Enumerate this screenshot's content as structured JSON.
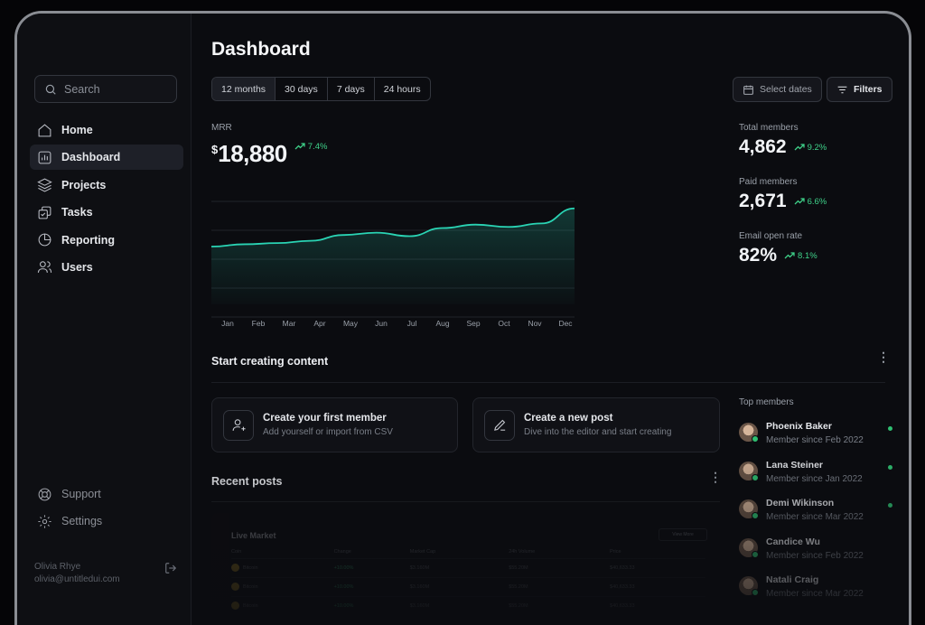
{
  "search": {
    "placeholder": "Search"
  },
  "nav": [
    {
      "label": "Home",
      "icon": "home-icon"
    },
    {
      "label": "Dashboard",
      "icon": "bar-chart-icon",
      "active": true
    },
    {
      "label": "Projects",
      "icon": "layers-icon"
    },
    {
      "label": "Tasks",
      "icon": "check-squares-icon"
    },
    {
      "label": "Reporting",
      "icon": "pie-chart-icon"
    },
    {
      "label": "Users",
      "icon": "users-icon"
    }
  ],
  "bottom_nav": [
    {
      "label": "Support",
      "icon": "life-buoy-icon"
    },
    {
      "label": "Settings",
      "icon": "gear-icon"
    }
  ],
  "user": {
    "name": "Olivia Rhye",
    "email": "olivia@untitledui.com"
  },
  "page": {
    "title": "Dashboard"
  },
  "ranges": [
    "12 months",
    "30 days",
    "7 days",
    "24 hours"
  ],
  "actions": {
    "select_dates": "Select dates",
    "filters": "Filters"
  },
  "mrr": {
    "label": "MRR",
    "currency": "$",
    "value": "18,880",
    "delta": "7.4%"
  },
  "stats": [
    {
      "label": "Total members",
      "value": "4,862",
      "delta": "9.2%"
    },
    {
      "label": "Paid members",
      "value": "2,671",
      "delta": "6.6%"
    },
    {
      "label": "Email open rate",
      "value": "82%",
      "delta": "8.1%"
    }
  ],
  "chart_data": {
    "type": "area",
    "categories": [
      "Jan",
      "Feb",
      "Mar",
      "Apr",
      "May",
      "Jun",
      "Jul",
      "Aug",
      "Sep",
      "Oct",
      "Nov",
      "Dec"
    ],
    "values": [
      5.0,
      5.2,
      5.3,
      5.5,
      6.0,
      6.2,
      5.9,
      6.6,
      6.9,
      6.7,
      7.0,
      8.3
    ],
    "ylim": [
      0,
      10
    ],
    "grid": true,
    "accent": "#2ad4b4"
  },
  "content": {
    "title": "Start creating content",
    "cards": [
      {
        "title": "Create your first member",
        "subtitle": "Add yourself or import from CSV",
        "icon": "user-plus-icon"
      },
      {
        "title": "Create a new post",
        "subtitle": "Dive into the editor and start creating",
        "icon": "pen-icon"
      }
    ]
  },
  "recent": {
    "title": "Recent posts",
    "market": {
      "title": "Live Market",
      "button": "View More",
      "columns": [
        "Coin",
        "Change",
        "Market Cap",
        "24h Volume",
        "Price"
      ],
      "rows": [
        [
          "Bitcoin",
          "+10.00%",
          "$3.160M",
          "$55.20M",
          "$40,633.33"
        ],
        [
          "Bitcoin",
          "+10.00%",
          "$3.160M",
          "$55.20M",
          "$40,633.33"
        ],
        [
          "Bitcoin",
          "+10.00%",
          "$3.160M",
          "$55.20M",
          "$40,633.33"
        ]
      ]
    }
  },
  "top_members": {
    "title": "Top members",
    "members": [
      {
        "name": "Phoenix Baker",
        "since": "Member since Feb 2022"
      },
      {
        "name": "Lana Steiner",
        "since": "Member since Jan 2022"
      },
      {
        "name": "Demi Wikinson",
        "since": "Member since Mar 2022"
      },
      {
        "name": "Candice Wu",
        "since": "Member since Feb 2022"
      },
      {
        "name": "Natali Craig",
        "since": "Member since Mar 2022"
      }
    ]
  }
}
